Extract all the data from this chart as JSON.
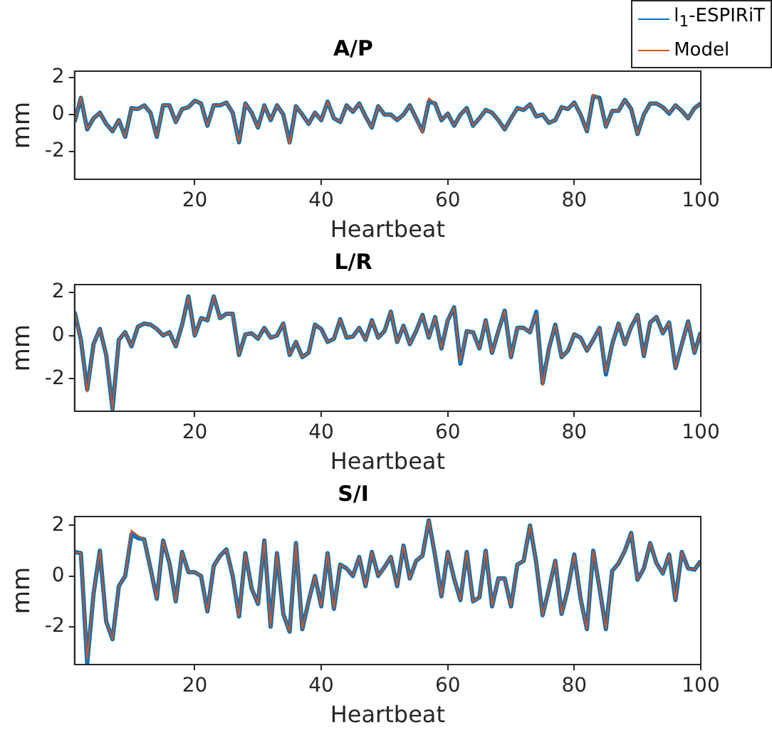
{
  "chart_data": [
    {
      "type": "line",
      "title": "A/P",
      "xlabel": "Heartbeat",
      "ylabel": "mm",
      "legend": "top right",
      "xlim": [
        1,
        100
      ],
      "ylim": [
        -3.5,
        2.35
      ],
      "xticks": [
        20,
        40,
        60,
        80,
        100
      ],
      "yticks": [
        -2,
        0,
        2
      ],
      "x": [
        1,
        2,
        3,
        4,
        5,
        6,
        7,
        8,
        9,
        10,
        11,
        12,
        13,
        14,
        15,
        16,
        17,
        18,
        19,
        20,
        21,
        22,
        23,
        24,
        25,
        26,
        27,
        28,
        29,
        30,
        31,
        32,
        33,
        34,
        35,
        36,
        37,
        38,
        39,
        40,
        41,
        42,
        43,
        44,
        45,
        46,
        47,
        48,
        49,
        50,
        51,
        52,
        53,
        54,
        55,
        56,
        57,
        58,
        59,
        60,
        61,
        62,
        63,
        64,
        65,
        66,
        67,
        68,
        69,
        70,
        71,
        72,
        73,
        74,
        75,
        76,
        77,
        78,
        79,
        80,
        81,
        82,
        83,
        84,
        85,
        86,
        87,
        88,
        89,
        90,
        91,
        92,
        93,
        94,
        95,
        96,
        97,
        98,
        99,
        100
      ],
      "series": [
        {
          "name": "l$_{1}$-ESPIRiT",
          "color": "#0072bd",
          "values": [
            -0.4,
            0.9,
            -0.8,
            -0.2,
            0.1,
            -0.5,
            -0.9,
            -0.3,
            -1.2,
            0.35,
            0.3,
            0.5,
            0.1,
            -1.2,
            0.5,
            0.5,
            -0.4,
            0.3,
            0.4,
            0.75,
            0.6,
            -0.6,
            0.5,
            0.5,
            0.65,
            0.1,
            -1.5,
            0.6,
            0.1,
            -0.7,
            0.5,
            -0.3,
            0.5,
            0,
            -1.5,
            0.45,
            0,
            -0.5,
            0.1,
            -0.3,
            0.7,
            -0.2,
            -0.4,
            0.5,
            0.15,
            0.6,
            -0.1,
            -0.7,
            0.45,
            0,
            0,
            -0.3,
            0,
            0.5,
            -0.2,
            -0.9,
            0.7,
            0.6,
            -0.3,
            0.05,
            -0.6,
            0,
            0.35,
            -0.6,
            -0.2,
            0.25,
            0.1,
            -0.3,
            -0.8,
            -0.2,
            0.35,
            0.25,
            0.55,
            -0.1,
            0,
            -0.45,
            -0.3,
            0.4,
            0.3,
            0.65,
            0,
            -0.9,
            1,
            0.9,
            -0.65,
            0.2,
            0.2,
            0.8,
            0.3,
            -1.05,
            0,
            0.6,
            0.6,
            0.4,
            0.05,
            0.5,
            0.2,
            -0.2,
            0.35,
            0.6
          ]
        },
        {
          "name": "Model",
          "color": "#d95319",
          "values": [
            -0.4,
            0.95,
            -0.8,
            -0.2,
            0.1,
            -0.5,
            -0.9,
            -0.3,
            -1.2,
            0.35,
            0.3,
            0.5,
            0.1,
            -1.2,
            0.5,
            0.5,
            -0.4,
            0.3,
            0.4,
            0.75,
            0.6,
            -0.6,
            0.5,
            0.5,
            0.65,
            0.1,
            -1.5,
            0.6,
            0.1,
            -0.7,
            0.5,
            -0.3,
            0.5,
            0,
            -1.6,
            0.45,
            0,
            -0.5,
            0.1,
            -0.3,
            0.7,
            -0.2,
            -0.4,
            0.5,
            0.15,
            0.6,
            -0.1,
            -0.7,
            0.45,
            0,
            0,
            -0.3,
            0,
            0.5,
            -0.2,
            -1,
            0.9,
            0.6,
            -0.3,
            0.05,
            -0.6,
            0,
            0.35,
            -0.6,
            -0.2,
            0.25,
            0.1,
            -0.3,
            -0.8,
            -0.2,
            0.35,
            0.25,
            0.55,
            -0.1,
            0,
            -0.45,
            -0.3,
            0.4,
            0.3,
            0.65,
            0,
            -0.9,
            1.1,
            0.8,
            -0.65,
            0.2,
            0.2,
            0.8,
            0.3,
            -1.05,
            0,
            0.6,
            0.6,
            0.4,
            0.1,
            0.5,
            0.2,
            -0.2,
            0.35,
            0.6
          ]
        }
      ]
    },
    {
      "type": "line",
      "title": "L/R",
      "xlabel": "Heartbeat",
      "ylabel": "mm",
      "xlim": [
        1,
        100
      ],
      "ylim": [
        -3.5,
        2.35
      ],
      "xticks": [
        20,
        40,
        60,
        80,
        100
      ],
      "yticks": [
        -2,
        0,
        2
      ],
      "x": [
        1,
        2,
        3,
        4,
        5,
        6,
        7,
        8,
        9,
        10,
        11,
        12,
        13,
        14,
        15,
        16,
        17,
        18,
        19,
        20,
        21,
        22,
        23,
        24,
        25,
        26,
        27,
        28,
        29,
        30,
        31,
        32,
        33,
        34,
        35,
        36,
        37,
        38,
        39,
        40,
        41,
        42,
        43,
        44,
        45,
        46,
        47,
        48,
        49,
        50,
        51,
        52,
        53,
        54,
        55,
        56,
        57,
        58,
        59,
        60,
        61,
        62,
        63,
        64,
        65,
        66,
        67,
        68,
        69,
        70,
        71,
        72,
        73,
        74,
        75,
        76,
        77,
        78,
        79,
        80,
        81,
        82,
        83,
        84,
        85,
        86,
        87,
        88,
        89,
        90,
        91,
        92,
        93,
        94,
        95,
        96,
        97,
        98,
        99,
        100
      ],
      "series": [
        {
          "color": "#0072bd",
          "values": [
            1.1,
            -0.2,
            -2.5,
            -0.4,
            0.3,
            -0.9,
            -3.4,
            -0.2,
            0.15,
            -0.5,
            0.4,
            0.55,
            0.5,
            0.3,
            0,
            0.15,
            -0.5,
            0.5,
            1.8,
            0,
            0.8,
            0.7,
            1.8,
            0.8,
            1,
            1,
            -0.9,
            0.05,
            0.1,
            -0.15,
            0.35,
            -0.1,
            0,
            0.55,
            -0.9,
            -0.3,
            -1,
            -0.8,
            0.5,
            0.3,
            -0.3,
            -0.15,
            0.75,
            -0.1,
            -0.05,
            0.35,
            -0.2,
            0.7,
            -0.1,
            0.2,
            1.1,
            -0.3,
            0.45,
            -0.4,
            0.2,
            0.95,
            -0.1,
            0.85,
            -0.6,
            0.7,
            1.3,
            -1.3,
            0.2,
            0.15,
            -0.6,
            0.7,
            -0.8,
            0.2,
            1.15,
            -1,
            0.35,
            0.35,
            0.15,
            1.1,
            -2.2,
            -0.6,
            0.5,
            -1,
            -0.7,
            0.05,
            -0.1,
            -0.7,
            -0.2,
            0.35,
            -1.8,
            -0.4,
            0.55,
            -0.4,
            0.4,
            0.95,
            -0.95,
            0.6,
            0.85,
            0.1,
            0.6,
            -1.5,
            -0.4,
            0.65,
            -0.8,
            0.15
          ]
        },
        {
          "color": "#d95319",
          "values": [
            1.1,
            -0.2,
            -2.6,
            -0.4,
            0.3,
            -0.9,
            -3.4,
            -0.2,
            0.15,
            -0.5,
            0.4,
            0.55,
            0.5,
            0.3,
            0,
            0.15,
            -0.5,
            0.5,
            1.8,
            0,
            0.8,
            0.7,
            1.8,
            0.8,
            1,
            1,
            -0.9,
            0.05,
            0.1,
            -0.15,
            0.35,
            -0.1,
            0,
            0.55,
            -0.9,
            -0.3,
            -1,
            -0.8,
            0.5,
            0.3,
            -0.3,
            -0.15,
            0.75,
            -0.1,
            -0.05,
            0.35,
            -0.2,
            0.7,
            -0.1,
            0.2,
            1.1,
            -0.3,
            0.45,
            -0.4,
            0.2,
            0.95,
            -0.1,
            0.85,
            -0.6,
            0.7,
            1.3,
            -1.2,
            0.2,
            0.15,
            -0.6,
            0.7,
            -0.8,
            0.2,
            1.15,
            -1,
            0.35,
            0.35,
            0.15,
            1,
            -2.3,
            -0.6,
            0.5,
            -1,
            -0.7,
            0.05,
            -0.1,
            -0.7,
            -0.2,
            0.35,
            -1.7,
            -0.4,
            0.55,
            -0.4,
            0.4,
            0.95,
            -0.95,
            0.6,
            0.85,
            0.1,
            0.6,
            -1.5,
            -0.4,
            0.65,
            -0.8,
            0.15
          ]
        }
      ]
    },
    {
      "type": "line",
      "title": "S/I",
      "xlabel": "Heartbeat",
      "ylabel": "mm",
      "xlim": [
        1,
        100
      ],
      "ylim": [
        -3.5,
        2.35
      ],
      "xticks": [
        20,
        40,
        60,
        80,
        100
      ],
      "yticks": [
        -2,
        0,
        2
      ],
      "x": [
        1,
        2,
        3,
        4,
        5,
        6,
        7,
        8,
        9,
        10,
        11,
        12,
        13,
        14,
        15,
        16,
        17,
        18,
        19,
        20,
        21,
        22,
        23,
        24,
        25,
        26,
        27,
        28,
        29,
        30,
        31,
        32,
        33,
        34,
        35,
        36,
        37,
        38,
        39,
        40,
        41,
        42,
        43,
        44,
        45,
        46,
        47,
        48,
        49,
        50,
        51,
        52,
        53,
        54,
        55,
        56,
        57,
        58,
        59,
        60,
        61,
        62,
        63,
        64,
        65,
        66,
        67,
        68,
        69,
        70,
        71,
        72,
        73,
        74,
        75,
        76,
        77,
        78,
        79,
        80,
        81,
        82,
        83,
        84,
        85,
        86,
        87,
        88,
        89,
        90,
        91,
        92,
        93,
        94,
        95,
        96,
        97,
        98,
        99,
        100
      ],
      "series": [
        {
          "color": "#0072bd",
          "values": [
            0.95,
            0.9,
            -3.45,
            -0.7,
            1,
            -1.8,
            -2.5,
            -0.4,
            0,
            1.65,
            1.5,
            1.45,
            0.3,
            -0.9,
            1.4,
            0.5,
            -1,
            0.95,
            0.15,
            0.15,
            0,
            -1.4,
            0.4,
            0.8,
            1.05,
            0,
            -1.6,
            0.9,
            -0.5,
            -1.1,
            1.4,
            -2,
            0.9,
            -1.5,
            -2.2,
            1.3,
            -2.1,
            -1,
            0,
            -1.2,
            0.9,
            -1.3,
            0.45,
            0.3,
            0,
            0.75,
            -0.4,
            0.95,
            0,
            0.35,
            0.75,
            -0.4,
            1.2,
            -0.1,
            0.6,
            0.8,
            2.2,
            0.8,
            -0.8,
            0.95,
            -0.1,
            -0.95,
            0.95,
            -1,
            -0.85,
            1,
            -1.2,
            -0.1,
            -0.1,
            -1.2,
            0.45,
            0.6,
            2,
            0.5,
            -1.55,
            -0.5,
            0.6,
            -1.5,
            -0.5,
            0.85,
            -0.9,
            -2.1,
            1,
            -0.5,
            -2.1,
            0.2,
            0.5,
            1,
            1.7,
            -0.15,
            0.3,
            1.3,
            0.5,
            0.1,
            0.85,
            -0.95,
            0.95,
            0.3,
            0.25,
            0.6
          ]
        },
        {
          "color": "#d95319",
          "values": [
            0.95,
            0.9,
            -3.3,
            -0.7,
            1,
            -1.8,
            -2.5,
            -0.4,
            0,
            1.8,
            1.6,
            1.45,
            0.3,
            -0.9,
            1.4,
            0.5,
            -1,
            0.95,
            0.15,
            0.15,
            0,
            -1.4,
            0.4,
            0.8,
            1.05,
            0,
            -1.6,
            0.9,
            -0.5,
            -1.1,
            1.4,
            -2,
            0.9,
            -1.5,
            -2.2,
            1.3,
            -2.1,
            -1,
            0,
            -1.2,
            0.9,
            -1.3,
            0.45,
            0.3,
            0,
            0.75,
            -0.4,
            0.95,
            0,
            0.35,
            0.75,
            -0.4,
            1.2,
            -0.1,
            0.6,
            0.8,
            2.2,
            0.8,
            -0.8,
            0.95,
            -0.1,
            -0.95,
            0.95,
            -1,
            -0.85,
            1,
            -1.2,
            -0.1,
            -0.1,
            -1.2,
            0.45,
            0.6,
            2,
            0.5,
            -1.55,
            -0.5,
            0.6,
            -1.5,
            -0.5,
            0.85,
            -0.9,
            -2.1,
            1,
            -0.5,
            -2.1,
            0.2,
            0.5,
            1,
            1.7,
            -0.15,
            0.3,
            1.3,
            0.5,
            0.1,
            0.85,
            -0.95,
            0.95,
            0.3,
            0.25,
            0.6
          ]
        }
      ]
    }
  ]
}
